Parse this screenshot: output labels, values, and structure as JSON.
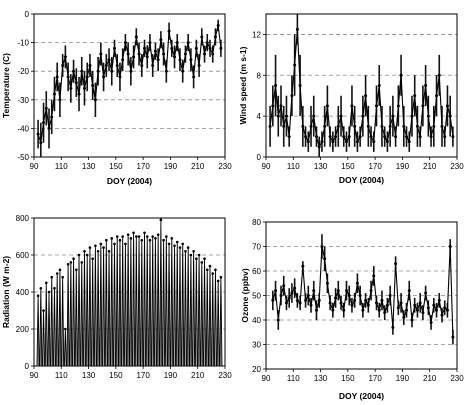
{
  "chart_data": [
    {
      "id": "temperature",
      "type": "line",
      "xlabel": "DOY (2004)",
      "ylabel": "Temperature (C)",
      "xlim": [
        90,
        230
      ],
      "ylim": [
        -50,
        0
      ],
      "xticks": [
        90,
        110,
        130,
        150,
        170,
        190,
        210,
        230
      ],
      "yticks": [
        -50,
        -40,
        -30,
        -20,
        -10,
        0
      ],
      "grid_y": [
        -10,
        -20,
        -30,
        -40
      ],
      "grid": "dashed horizontal",
      "series": [
        {
          "x": [
            93,
            95,
            97,
            99,
            101,
            103,
            105,
            107,
            109,
            111,
            113,
            115,
            117,
            119,
            121,
            123,
            125,
            127,
            129,
            131,
            133,
            135,
            137,
            139,
            141,
            143,
            145,
            147,
            149,
            151,
            153,
            155,
            157,
            159,
            161,
            163,
            165,
            167,
            169,
            171,
            173,
            175,
            177,
            179,
            181,
            183,
            185,
            187,
            189,
            191,
            193,
            195,
            197,
            199,
            201,
            203,
            205,
            207,
            209,
            211,
            213,
            215,
            217,
            219,
            221,
            223,
            225,
            227
          ],
          "y": [
            -42,
            -45,
            -38,
            -33,
            -40,
            -36,
            -28,
            -22,
            -30,
            -18,
            -15,
            -22,
            -26,
            -20,
            -24,
            -28,
            -20,
            -26,
            -22,
            -18,
            -25,
            -30,
            -20,
            -14,
            -22,
            -18,
            -16,
            -20,
            -12,
            -18,
            -22,
            -16,
            -10,
            -14,
            -20,
            -15,
            -8,
            -14,
            -18,
            -12,
            -15,
            -10,
            -18,
            -13,
            -16,
            -9,
            -14,
            -20,
            -6,
            -12,
            -15,
            -10,
            -16,
            -20,
            -14,
            -10,
            -16,
            -22,
            -12,
            -18,
            -8,
            -14,
            -10,
            -12,
            -14,
            -8,
            -4,
            -12
          ],
          "band": [
            5,
            7,
            7,
            6,
            7,
            6,
            6,
            5,
            6,
            4,
            4,
            5,
            5,
            4,
            5,
            6,
            5,
            6,
            5,
            4,
            5,
            6,
            5,
            4,
            5,
            4,
            4,
            5,
            3,
            4,
            5,
            4,
            3,
            4,
            5,
            4,
            3,
            4,
            4,
            3,
            4,
            3,
            4,
            3,
            4,
            3,
            4,
            4,
            3,
            3,
            4,
            3,
            4,
            4,
            3,
            3,
            4,
            4,
            3,
            4,
            3,
            3,
            3,
            3,
            3,
            3,
            2,
            3
          ]
        }
      ]
    },
    {
      "id": "wind-speed",
      "type": "line",
      "xlabel": "DOY (2004)",
      "ylabel": "Wind speed (m s-1)",
      "xlim": [
        90,
        230
      ],
      "ylim": [
        0,
        14
      ],
      "xticks": [
        90,
        110,
        130,
        150,
        170,
        190,
        210,
        230
      ],
      "yticks": [
        0,
        4,
        8,
        12
      ],
      "grid_y": [
        4,
        8,
        12
      ],
      "grid": "dashed horizontal",
      "series": [
        {
          "x": [
            93,
            95,
            97,
            99,
            101,
            103,
            105,
            107,
            109,
            111,
            113,
            115,
            117,
            119,
            121,
            123,
            125,
            127,
            129,
            131,
            133,
            135,
            137,
            139,
            141,
            143,
            145,
            147,
            149,
            151,
            153,
            155,
            157,
            159,
            161,
            163,
            165,
            167,
            169,
            171,
            173,
            175,
            177,
            179,
            181,
            183,
            185,
            187,
            189,
            191,
            193,
            195,
            197,
            199,
            201,
            203,
            205,
            207,
            209,
            211,
            213,
            215,
            217,
            219,
            221,
            223,
            225,
            227
          ],
          "y": [
            3,
            5,
            7,
            4,
            5,
            3,
            4,
            2,
            6,
            9,
            12.5,
            7,
            3,
            2,
            1.5,
            3,
            4,
            2,
            1,
            1.5,
            3,
            5,
            2,
            1.5,
            2,
            3,
            4,
            2,
            1.5,
            2,
            5,
            3,
            1.5,
            2,
            4,
            6,
            3,
            2,
            1.5,
            5,
            7,
            3,
            2,
            1.5,
            3,
            4,
            2,
            5,
            8,
            3,
            2,
            1.5,
            4,
            6,
            3,
            2,
            5,
            7,
            4,
            2,
            3,
            6,
            8,
            3,
            2,
            5,
            4,
            2
          ],
          "band": [
            2,
            2,
            3,
            2,
            2,
            2,
            2,
            1,
            2,
            3,
            1.5,
            3,
            2,
            1,
            1,
            2,
            2,
            1,
            1,
            1,
            2,
            2,
            1,
            1,
            1,
            2,
            2,
            1,
            1,
            1,
            2,
            2,
            1,
            1,
            2,
            2,
            2,
            1,
            1,
            2,
            2,
            2,
            1,
            1,
            2,
            2,
            1,
            2,
            2,
            2,
            1,
            1,
            2,
            2,
            2,
            1,
            2,
            2,
            2,
            1,
            2,
            2,
            2,
            2,
            1,
            2,
            2,
            1
          ]
        }
      ]
    },
    {
      "id": "radiation",
      "type": "line",
      "xlabel": "",
      "ylabel": "Radiation (W m-2)",
      "xlim": [
        90,
        230
      ],
      "ylim": [
        0,
        800
      ],
      "xticks": [
        90,
        110,
        130,
        150,
        170,
        190,
        210,
        230
      ],
      "yticks": [
        0,
        200,
        400,
        600,
        800
      ],
      "grid_y": [
        200,
        400,
        600
      ],
      "grid": "dashed horizontal",
      "diurnal": true,
      "series": [
        {
          "x": [
            93,
            95,
            97,
            99,
            101,
            103,
            105,
            107,
            109,
            111,
            113,
            115,
            117,
            119,
            121,
            123,
            125,
            127,
            129,
            131,
            133,
            135,
            137,
            139,
            141,
            143,
            145,
            147,
            149,
            151,
            153,
            155,
            157,
            159,
            161,
            163,
            165,
            167,
            169,
            171,
            173,
            175,
            177,
            179,
            181,
            183,
            185,
            187,
            189,
            191,
            193,
            195,
            197,
            199,
            201,
            203,
            205,
            207,
            209,
            211,
            213,
            215,
            217,
            219,
            221,
            223,
            225,
            227
          ],
          "y": [
            380,
            420,
            300,
            450,
            400,
            480,
            420,
            500,
            520,
            480,
            200,
            550,
            560,
            580,
            520,
            600,
            560,
            620,
            600,
            640,
            580,
            650,
            620,
            660,
            640,
            680,
            620,
            690,
            660,
            700,
            680,
            700,
            660,
            710,
            690,
            720,
            700,
            700,
            680,
            720,
            700,
            680,
            700,
            690,
            710,
            790,
            680,
            700,
            660,
            690,
            650,
            670,
            640,
            660,
            620,
            640,
            600,
            620,
            580,
            600,
            560,
            580,
            520,
            540,
            500,
            520,
            460,
            480
          ]
        }
      ]
    },
    {
      "id": "ozone",
      "type": "line",
      "xlabel": "DOY (2004)",
      "ylabel": "Ozone (ppbv)",
      "xlim": [
        90,
        230
      ],
      "ylim": [
        20,
        80
      ],
      "xticks": [
        90,
        110,
        130,
        150,
        170,
        190,
        210,
        230
      ],
      "yticks": [
        20,
        30,
        40,
        50,
        60,
        70,
        80
      ],
      "grid_y": [
        30,
        40,
        50,
        60,
        70
      ],
      "grid": "dashed horizontal",
      "series": [
        {
          "x": [
            95,
            97,
            99,
            101,
            103,
            105,
            107,
            109,
            111,
            113,
            115,
            117,
            119,
            121,
            123,
            125,
            127,
            129,
            131,
            133,
            135,
            137,
            139,
            141,
            143,
            145,
            147,
            149,
            151,
            153,
            155,
            157,
            159,
            161,
            163,
            165,
            167,
            169,
            171,
            173,
            175,
            177,
            179,
            181,
            183,
            185,
            187,
            189,
            191,
            193,
            195,
            197,
            199,
            201,
            203,
            205,
            207,
            209,
            211,
            213,
            215,
            217,
            219,
            221,
            223,
            225,
            227
          ],
          "y": [
            48,
            52,
            40,
            50,
            54,
            47,
            49,
            51,
            53,
            48,
            47,
            62,
            48,
            50,
            46,
            52,
            44,
            48,
            70,
            65,
            55,
            47,
            44,
            49,
            52,
            47,
            44,
            52,
            50,
            46,
            48,
            55,
            50,
            44,
            48,
            46,
            52,
            58,
            47,
            44,
            48,
            43,
            46,
            50,
            37,
            63,
            45,
            47,
            41,
            44,
            52,
            40,
            46,
            44,
            47,
            43,
            51,
            45,
            39,
            46,
            44,
            48,
            42,
            45,
            44,
            70,
            33
          ],
          "band": [
            4,
            4,
            4,
            4,
            4,
            3,
            4,
            4,
            4,
            3,
            3,
            2,
            3,
            4,
            3,
            4,
            4,
            3,
            5,
            5,
            4,
            3,
            3,
            4,
            4,
            3,
            3,
            4,
            4,
            3,
            3,
            4,
            4,
            3,
            3,
            3,
            4,
            4,
            3,
            3,
            4,
            3,
            3,
            4,
            3,
            3,
            3,
            4,
            3,
            3,
            4,
            3,
            3,
            3,
            4,
            3,
            3,
            3,
            3,
            3,
            3,
            3,
            3,
            3,
            3,
            3,
            3
          ]
        }
      ]
    }
  ]
}
